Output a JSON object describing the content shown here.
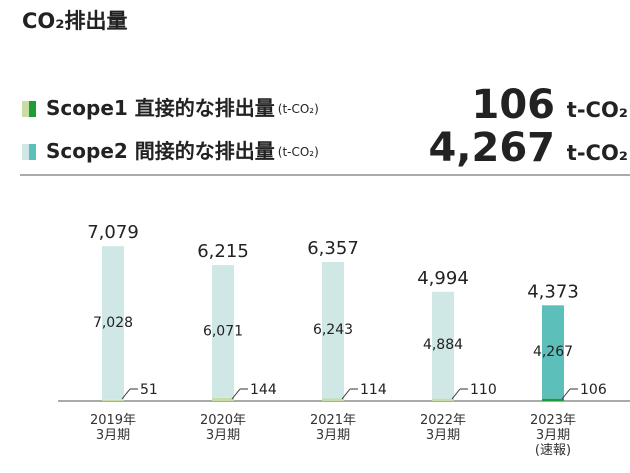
{
  "title": "CO₂排出量",
  "chart_data": {
    "type": "stacked-bar",
    "categories": [
      "2019年\n3月期",
      "2020年\n3月期",
      "2021年\n3月期",
      "2022年\n3月期",
      "2023年\n3月期\n(速報)"
    ],
    "series": [
      {
        "name": "Scope1 直接的な排出量",
        "name_unit": "(t-CO₂)",
        "headline": "106",
        "headline_unit": "t-CO₂",
        "color": "#1e9c3c",
        "colors": [
          "#c8dca6",
          "#c8dca6",
          "#c8dca6",
          "#c8dca6",
          "#1e9c3c"
        ],
        "values": [
          51,
          144,
          114,
          110,
          106
        ]
      },
      {
        "name": "Scope2 間接的な排出量",
        "name_unit": "(t-CO₂)",
        "headline": "4,267",
        "headline_unit": "t-CO₂",
        "color": "#5dbfb9",
        "colors": [
          "#cfe8e6",
          "#cfe8e6",
          "#cfe8e6",
          "#cfe8e6",
          "#5dbfb9"
        ],
        "values": [
          7028,
          6071,
          6243,
          4884,
          4267
        ],
        "value_labels": [
          "7,028",
          "6,071",
          "6,243",
          "4,884",
          "4,267"
        ]
      }
    ],
    "totals": {
      "values": [
        7079,
        6215,
        6357,
        4994,
        4373
      ],
      "value_labels": [
        "7,079",
        "6,215",
        "6,357",
        "4,994",
        "4,373"
      ]
    },
    "ylim": [
      0,
      8000
    ]
  }
}
